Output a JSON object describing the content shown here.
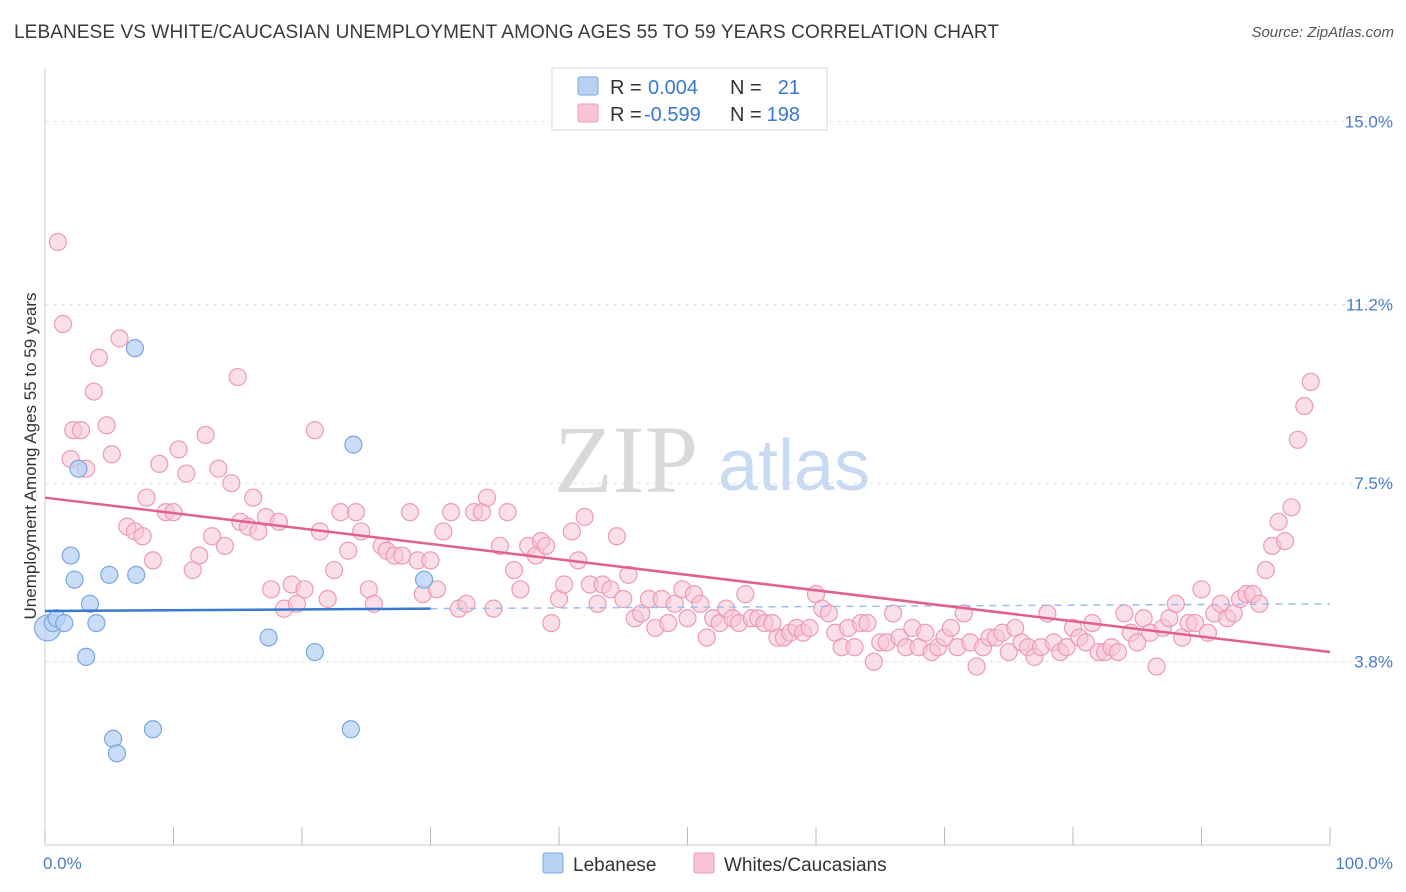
{
  "header": {
    "title": "LEBANESE VS WHITE/CAUCASIAN UNEMPLOYMENT AMONG AGES 55 TO 59 YEARS CORRELATION CHART",
    "source": "Source: ZipAtlas.com"
  },
  "watermark": {
    "zip": "ZIP",
    "atlas": "atlas"
  },
  "legend": {
    "rows": [
      {
        "r_label": "R =",
        "r_value": "0.004",
        "n_label": "N =",
        "n_value": "21"
      },
      {
        "r_label": "R =",
        "r_value": "-0.599",
        "n_label": "N =",
        "n_value": "198"
      }
    ]
  },
  "chart_data": {
    "type": "scatter",
    "title": "LEBANESE VS WHITE/CAUCASIAN UNEMPLOYMENT AMONG AGES 55 TO 59 YEARS CORRELATION CHART",
    "xlabel": "",
    "ylabel": "Unemployment Among Ages 55 to 59 years",
    "xlim": [
      0,
      100
    ],
    "ylim": [
      0,
      15.9
    ],
    "x_tick_labels": [
      "0.0%",
      "100.0%"
    ],
    "y_ticks": [
      3.8,
      7.5,
      11.2,
      15.0
    ],
    "y_tick_labels": [
      "3.8%",
      "7.5%",
      "11.2%",
      "15.0%"
    ],
    "colors": {
      "lebanese_fill": "#b8d1f3",
      "lebanese_stroke": "#7aa6e0",
      "lebanese_line": "#3a78d0",
      "white_fill": "#f8c4d6",
      "white_stroke": "#ec9ab6",
      "white_line": "#e0608e",
      "axis_text": "#4a7ccc"
    },
    "series": [
      {
        "name": "Lebanese",
        "points": [
          [
            0.2,
            4.5
          ],
          [
            0.6,
            4.6
          ],
          [
            0.9,
            4.7
          ],
          [
            1.5,
            4.6
          ],
          [
            2.0,
            6.0
          ],
          [
            2.3,
            5.5
          ],
          [
            2.6,
            7.8
          ],
          [
            3.2,
            3.9
          ],
          [
            3.5,
            5.0
          ],
          [
            4.0,
            4.6
          ],
          [
            5.0,
            5.6
          ],
          [
            5.3,
            2.2
          ],
          [
            5.6,
            1.9
          ],
          [
            7.0,
            10.3
          ],
          [
            7.1,
            5.6
          ],
          [
            8.4,
            2.4
          ],
          [
            17.4,
            4.3
          ],
          [
            21.0,
            4.0
          ],
          [
            23.8,
            2.4
          ],
          [
            24.0,
            8.3
          ],
          [
            29.5,
            5.5
          ]
        ],
        "regression": {
          "x0": 0,
          "y0": 4.85,
          "x1": 30,
          "y1": 4.9,
          "dash_x1": 100,
          "dash_y1": 5.0
        },
        "r": "0.004",
        "n": "21"
      },
      {
        "name": "Whites/Caucasians",
        "points": [
          [
            1.0,
            12.5
          ],
          [
            1.4,
            10.8
          ],
          [
            2.0,
            8.0
          ],
          [
            2.2,
            8.6
          ],
          [
            2.8,
            8.6
          ],
          [
            3.2,
            7.8
          ],
          [
            3.8,
            9.4
          ],
          [
            4.2,
            10.1
          ],
          [
            4.8,
            8.7
          ],
          [
            5.2,
            8.1
          ],
          [
            5.8,
            10.5
          ],
          [
            6.4,
            6.6
          ],
          [
            7.0,
            6.5
          ],
          [
            7.6,
            6.4
          ],
          [
            7.9,
            7.2
          ],
          [
            8.4,
            5.9
          ],
          [
            8.9,
            7.9
          ],
          [
            9.4,
            6.9
          ],
          [
            10.0,
            6.9
          ],
          [
            10.4,
            8.2
          ],
          [
            11.0,
            7.7
          ],
          [
            11.5,
            5.7
          ],
          [
            12.0,
            6.0
          ],
          [
            12.5,
            8.5
          ],
          [
            13.0,
            6.4
          ],
          [
            13.5,
            7.8
          ],
          [
            14.0,
            6.2
          ],
          [
            14.5,
            7.5
          ],
          [
            15.0,
            9.7
          ],
          [
            15.2,
            6.7
          ],
          [
            15.8,
            6.6
          ],
          [
            16.2,
            7.2
          ],
          [
            16.6,
            6.5
          ],
          [
            17.2,
            6.8
          ],
          [
            17.6,
            5.3
          ],
          [
            18.2,
            6.7
          ],
          [
            18.6,
            4.9
          ],
          [
            19.2,
            5.4
          ],
          [
            19.6,
            5.0
          ],
          [
            20.2,
            5.3
          ],
          [
            21.0,
            8.6
          ],
          [
            21.4,
            6.5
          ],
          [
            22.0,
            5.1
          ],
          [
            22.5,
            5.7
          ],
          [
            23.0,
            6.9
          ],
          [
            23.6,
            6.1
          ],
          [
            24.2,
            6.9
          ],
          [
            24.6,
            6.5
          ],
          [
            25.2,
            5.3
          ],
          [
            25.6,
            5.0
          ],
          [
            26.2,
            6.2
          ],
          [
            26.6,
            6.1
          ],
          [
            27.2,
            6.0
          ],
          [
            27.8,
            6.0
          ],
          [
            28.4,
            6.9
          ],
          [
            29.0,
            5.9
          ],
          [
            29.4,
            5.2
          ],
          [
            30.0,
            5.9
          ],
          [
            30.5,
            5.3
          ],
          [
            31.0,
            6.5
          ],
          [
            31.6,
            6.9
          ],
          [
            32.2,
            4.9
          ],
          [
            32.8,
            5.0
          ],
          [
            33.4,
            6.9
          ],
          [
            34.0,
            6.9
          ],
          [
            34.4,
            7.2
          ],
          [
            34.9,
            4.9
          ],
          [
            35.4,
            6.2
          ],
          [
            36.0,
            6.9
          ],
          [
            36.5,
            5.7
          ],
          [
            37.0,
            5.3
          ],
          [
            37.6,
            6.2
          ],
          [
            38.2,
            6.0
          ],
          [
            38.6,
            6.3
          ],
          [
            39.0,
            6.2
          ],
          [
            39.4,
            4.6
          ],
          [
            40.0,
            5.1
          ],
          [
            40.4,
            5.4
          ],
          [
            41.0,
            6.5
          ],
          [
            41.5,
            5.9
          ],
          [
            42.0,
            6.8
          ],
          [
            42.4,
            5.4
          ],
          [
            43.0,
            5.0
          ],
          [
            43.4,
            5.4
          ],
          [
            44.0,
            5.3
          ],
          [
            44.5,
            6.4
          ],
          [
            45.0,
            5.1
          ],
          [
            45.4,
            5.6
          ],
          [
            45.9,
            4.7
          ],
          [
            46.4,
            4.8
          ],
          [
            47.0,
            5.1
          ],
          [
            47.5,
            4.5
          ],
          [
            48.0,
            5.1
          ],
          [
            48.5,
            4.6
          ],
          [
            49.0,
            5.0
          ],
          [
            49.6,
            5.3
          ],
          [
            50.0,
            4.7
          ],
          [
            50.5,
            5.2
          ],
          [
            51.0,
            5.0
          ],
          [
            51.5,
            4.3
          ],
          [
            52.0,
            4.7
          ],
          [
            52.5,
            4.6
          ],
          [
            53.0,
            4.9
          ],
          [
            53.5,
            4.7
          ],
          [
            54.0,
            4.6
          ],
          [
            54.5,
            5.2
          ],
          [
            55.0,
            4.7
          ],
          [
            55.5,
            4.7
          ],
          [
            56.0,
            4.6
          ],
          [
            56.6,
            4.6
          ],
          [
            57.0,
            4.3
          ],
          [
            57.5,
            4.3
          ],
          [
            58.0,
            4.4
          ],
          [
            58.5,
            4.5
          ],
          [
            59.0,
            4.4
          ],
          [
            59.5,
            4.5
          ],
          [
            60.0,
            5.2
          ],
          [
            60.5,
            4.9
          ],
          [
            61.0,
            4.8
          ],
          [
            61.5,
            4.4
          ],
          [
            62.0,
            4.1
          ],
          [
            62.5,
            4.5
          ],
          [
            63.0,
            4.1
          ],
          [
            63.5,
            4.6
          ],
          [
            64.0,
            4.6
          ],
          [
            64.5,
            3.8
          ],
          [
            65.0,
            4.2
          ],
          [
            65.5,
            4.2
          ],
          [
            66.0,
            4.8
          ],
          [
            66.5,
            4.3
          ],
          [
            67.0,
            4.1
          ],
          [
            67.5,
            4.5
          ],
          [
            68.0,
            4.1
          ],
          [
            68.5,
            4.4
          ],
          [
            69.0,
            4.0
          ],
          [
            69.5,
            4.1
          ],
          [
            70.0,
            4.3
          ],
          [
            70.5,
            4.5
          ],
          [
            71.0,
            4.1
          ],
          [
            71.5,
            4.8
          ],
          [
            72.0,
            4.2
          ],
          [
            72.5,
            3.7
          ],
          [
            73.0,
            4.1
          ],
          [
            73.5,
            4.3
          ],
          [
            74.0,
            4.3
          ],
          [
            74.5,
            4.4
          ],
          [
            75.0,
            4.0
          ],
          [
            75.5,
            4.5
          ],
          [
            76.0,
            4.2
          ],
          [
            76.5,
            4.1
          ],
          [
            77.0,
            3.9
          ],
          [
            77.5,
            4.1
          ],
          [
            78.0,
            4.8
          ],
          [
            78.5,
            4.2
          ],
          [
            79.0,
            4.0
          ],
          [
            79.5,
            4.1
          ],
          [
            80.0,
            4.5
          ],
          [
            80.5,
            4.3
          ],
          [
            81.0,
            4.2
          ],
          [
            81.5,
            4.6
          ],
          [
            82.0,
            4.0
          ],
          [
            82.5,
            4.0
          ],
          [
            83.0,
            4.1
          ],
          [
            83.5,
            4.0
          ],
          [
            84.0,
            4.8
          ],
          [
            84.5,
            4.4
          ],
          [
            85.0,
            4.2
          ],
          [
            85.5,
            4.7
          ],
          [
            86.0,
            4.4
          ],
          [
            86.5,
            3.7
          ],
          [
            87.0,
            4.5
          ],
          [
            87.5,
            4.7
          ],
          [
            88.0,
            5.0
          ],
          [
            88.5,
            4.3
          ],
          [
            89.0,
            4.6
          ],
          [
            89.5,
            4.6
          ],
          [
            90.0,
            5.3
          ],
          [
            90.5,
            4.4
          ],
          [
            91.0,
            4.8
          ],
          [
            91.5,
            5.0
          ],
          [
            92.0,
            4.7
          ],
          [
            92.5,
            4.8
          ],
          [
            93.0,
            5.1
          ],
          [
            93.5,
            5.2
          ],
          [
            94.0,
            5.2
          ],
          [
            94.5,
            5.0
          ],
          [
            95.0,
            5.7
          ],
          [
            95.5,
            6.2
          ],
          [
            96.0,
            6.7
          ],
          [
            96.5,
            6.3
          ],
          [
            97.0,
            7.0
          ],
          [
            97.5,
            8.4
          ],
          [
            98.0,
            9.1
          ],
          [
            98.5,
            9.6
          ]
        ],
        "regression": {
          "x0": 0,
          "y0": 7.2,
          "x1": 100,
          "y1": 4.0
        },
        "r": "-0.599",
        "n": "198"
      }
    ],
    "bottom_legend": [
      "Lebanese",
      "Whites/Caucasians"
    ]
  }
}
